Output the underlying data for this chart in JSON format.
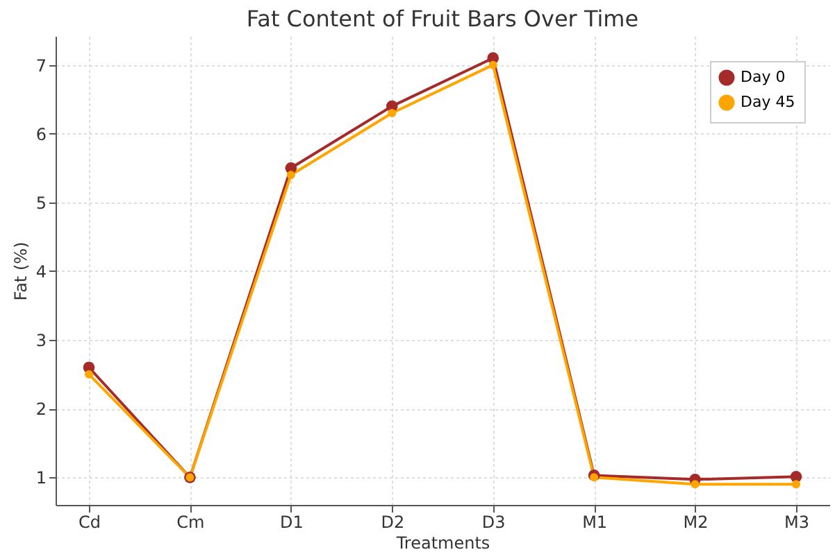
{
  "chart_data": {
    "type": "line",
    "title": "Fat Content of Fruit Bars Over Time",
    "xlabel": "Treatments",
    "ylabel": "Fat (%)",
    "categories": [
      "Cd",
      "Cm",
      "D1",
      "D2",
      "D3",
      "M1",
      "M2",
      "M3"
    ],
    "series": [
      {
        "name": "Day 0",
        "color": "#a52a2a",
        "values": [
          2.6,
          1.0,
          5.5,
          6.4,
          7.1,
          1.03,
          0.97,
          1.01
        ]
      },
      {
        "name": "Day 45",
        "color": "#ffa500",
        "values": [
          2.5,
          1.0,
          5.4,
          6.3,
          7.0,
          1.0,
          0.9,
          0.9
        ]
      }
    ],
    "ylim": [
      0.6,
      7.42
    ],
    "yticks": [
      1,
      2,
      3,
      4,
      5,
      6,
      7
    ],
    "grid": true,
    "legend": "top right",
    "marker": "circle",
    "line_style": "solid"
  }
}
